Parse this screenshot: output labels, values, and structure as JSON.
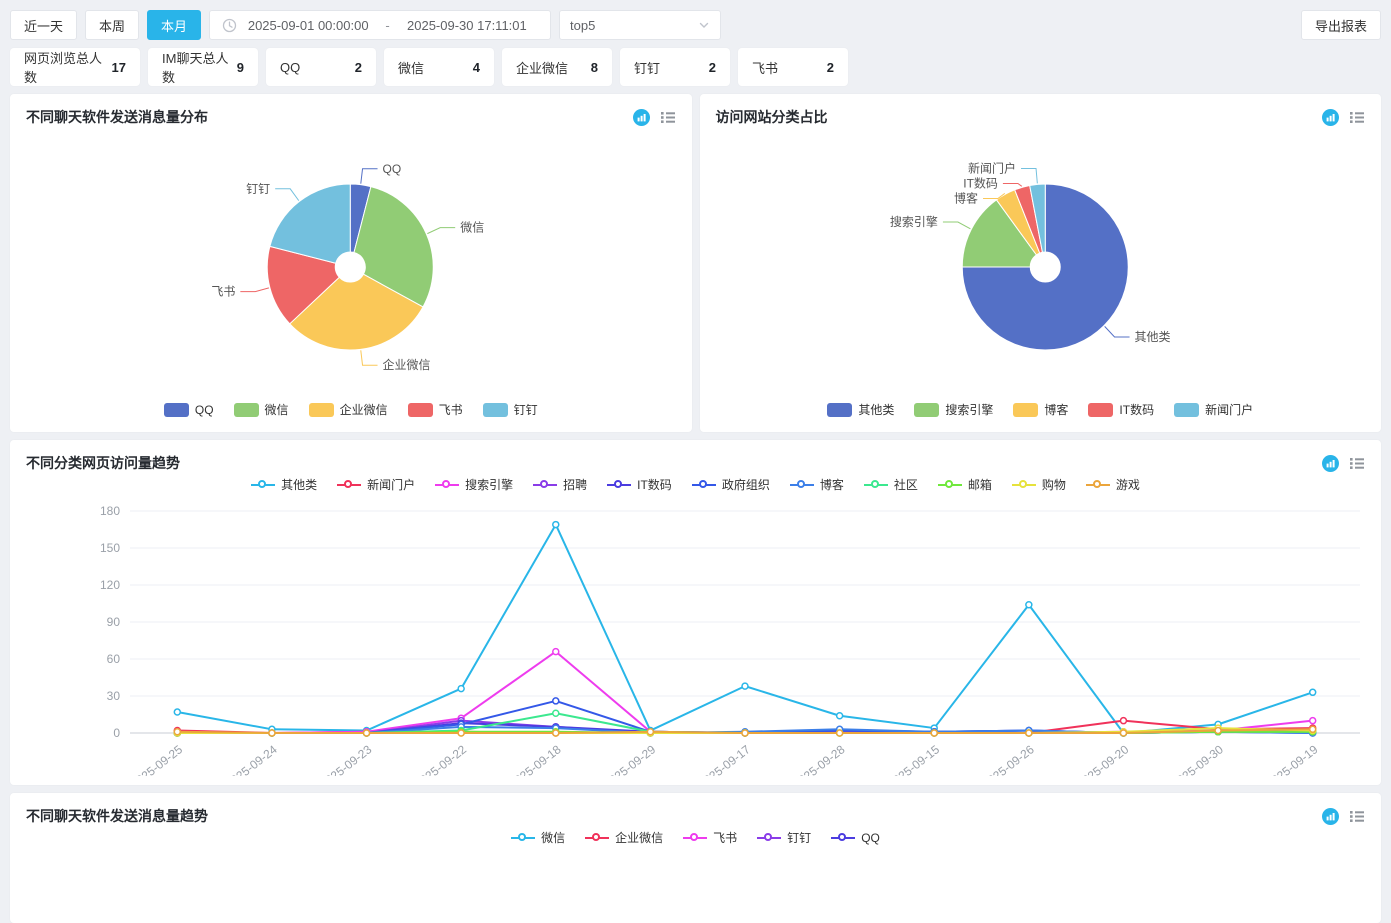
{
  "toolbar": {
    "time_buttons": [
      {
        "label": "近一天",
        "active": false
      },
      {
        "label": "本周",
        "active": false
      },
      {
        "label": "本月",
        "active": true
      }
    ],
    "date_range": {
      "start": "2025-09-01 00:00:00",
      "separator": "-",
      "end": "2025-09-30 17:11:01"
    },
    "top_select": {
      "value": "top5"
    },
    "export_label": "导出报表"
  },
  "icons": {
    "date_picker": "clock-icon",
    "select": "chevron-down-icon",
    "card_actions": [
      "chart-type-icon",
      "list-view-icon"
    ]
  },
  "stats": [
    {
      "label": "网页浏览总人数",
      "value": "17"
    },
    {
      "label": "IM聊天总人数",
      "value": "9"
    },
    {
      "label": "QQ",
      "value": "2"
    },
    {
      "label": "微信",
      "value": "4"
    },
    {
      "label": "企业微信",
      "value": "8"
    },
    {
      "label": "钉钉",
      "value": "2"
    },
    {
      "label": "飞书",
      "value": "2"
    }
  ],
  "cards": {
    "pie1": {
      "title": "不同聊天软件发送消息量分布"
    },
    "pie2": {
      "title": "访问网站分类占比"
    },
    "trend1": {
      "title": "不同分类网页访问量趋势"
    },
    "trend2": {
      "title": "不同聊天软件发送消息量趋势"
    }
  },
  "chart_data": [
    {
      "type": "pie",
      "title": "不同聊天软件发送消息量分布",
      "donut": true,
      "legend_position": "bottom",
      "series": [
        {
          "name": "QQ",
          "value": 4,
          "color": "#5470c6"
        },
        {
          "name": "微信",
          "value": 29,
          "color": "#91cc75"
        },
        {
          "name": "企业微信",
          "value": 30,
          "color": "#fac858"
        },
        {
          "name": "飞书",
          "value": 16,
          "color": "#ee6666"
        },
        {
          "name": "钉钉",
          "value": 21,
          "color": "#73c0de"
        }
      ]
    },
    {
      "type": "pie",
      "title": "访问网站分类占比",
      "donut": true,
      "legend_position": "bottom",
      "series": [
        {
          "name": "其他类",
          "value": 75,
          "color": "#5470c6"
        },
        {
          "name": "搜索引擎",
          "value": 15,
          "color": "#91cc75"
        },
        {
          "name": "博客",
          "value": 4,
          "color": "#fac858"
        },
        {
          "name": "IT数码",
          "value": 3,
          "color": "#ee6666"
        },
        {
          "name": "新闻门户",
          "value": 3,
          "color": "#73c0de"
        }
      ]
    },
    {
      "type": "line",
      "title": "不同分类网页访问量趋势",
      "legend_position": "top",
      "grid": true,
      "ylim": [
        0,
        180
      ],
      "yticks": [
        0,
        30,
        60,
        90,
        120,
        150,
        180
      ],
      "categories": [
        "2025-09-25",
        "2025-09-24",
        "2025-09-23",
        "2025-09-22",
        "2025-09-18",
        "2025-09-29",
        "2025-09-17",
        "2025-09-28",
        "2025-09-15",
        "2025-09-26",
        "2025-09-20",
        "2025-09-30",
        "2025-09-19"
      ],
      "series": [
        {
          "name": "其他类",
          "color": "#29b6e8",
          "values": [
            17,
            3,
            2,
            36,
            169,
            2,
            38,
            14,
            4,
            104,
            0,
            7,
            33
          ]
        },
        {
          "name": "新闻门户",
          "color": "#f0325a",
          "values": [
            2,
            0,
            1,
            1,
            0,
            1,
            0,
            1,
            0,
            0,
            10,
            3,
            4
          ]
        },
        {
          "name": "搜索引擎",
          "color": "#ee3cee",
          "values": [
            0,
            0,
            1,
            12,
            66,
            1,
            0,
            1,
            0,
            0,
            1,
            2,
            10
          ]
        },
        {
          "name": "招聘",
          "color": "#8a3ce8",
          "values": [
            0,
            0,
            0,
            10,
            5,
            0,
            0,
            1,
            0,
            0,
            0,
            1,
            1
          ]
        },
        {
          "name": "IT数码",
          "color": "#4b3ce0",
          "values": [
            0,
            0,
            0,
            8,
            5,
            1,
            0,
            2,
            1,
            2,
            0,
            1,
            1
          ]
        },
        {
          "name": "政府组织",
          "color": "#3458e8",
          "values": [
            0,
            0,
            0,
            7,
            26,
            1,
            0,
            2,
            1,
            2,
            0,
            1,
            0
          ]
        },
        {
          "name": "博客",
          "color": "#3c7fe8",
          "values": [
            0,
            0,
            0,
            5,
            4,
            0,
            1,
            3,
            1,
            2,
            0,
            1,
            0
          ]
        },
        {
          "name": "社区",
          "color": "#3ce88f",
          "values": [
            0,
            0,
            0,
            2,
            16,
            1,
            0,
            0,
            0,
            0,
            0,
            1,
            1
          ]
        },
        {
          "name": "邮箱",
          "color": "#70e83c",
          "values": [
            0,
            0,
            0,
            1,
            1,
            0,
            0,
            0,
            0,
            0,
            0,
            1,
            1
          ]
        },
        {
          "name": "购物",
          "color": "#e6e23c",
          "values": [
            0,
            0,
            0,
            0,
            0,
            0,
            0,
            0,
            0,
            0,
            1,
            4,
            2
          ]
        },
        {
          "name": "游戏",
          "color": "#eba53c",
          "values": [
            1,
            0,
            0,
            0,
            0,
            1,
            0,
            0,
            0,
            0,
            0,
            2,
            3
          ]
        }
      ]
    },
    {
      "type": "line",
      "title": "不同聊天软件发送消息量趋势",
      "legend_position": "top",
      "series": [
        {
          "name": "微信",
          "color": "#29b6e8"
        },
        {
          "name": "企业微信",
          "color": "#f0325a"
        },
        {
          "name": "飞书",
          "color": "#ee3cee"
        },
        {
          "name": "钉钉",
          "color": "#8a3ce8"
        },
        {
          "name": "QQ",
          "color": "#4b3ce0"
        }
      ]
    }
  ],
  "palette": {
    "active_button": "#29b4e9",
    "card_icon_blue": "#29b4e9",
    "pie_colors": [
      "#5470c6",
      "#91cc75",
      "#fac858",
      "#ee6666",
      "#73c0de"
    ]
  }
}
